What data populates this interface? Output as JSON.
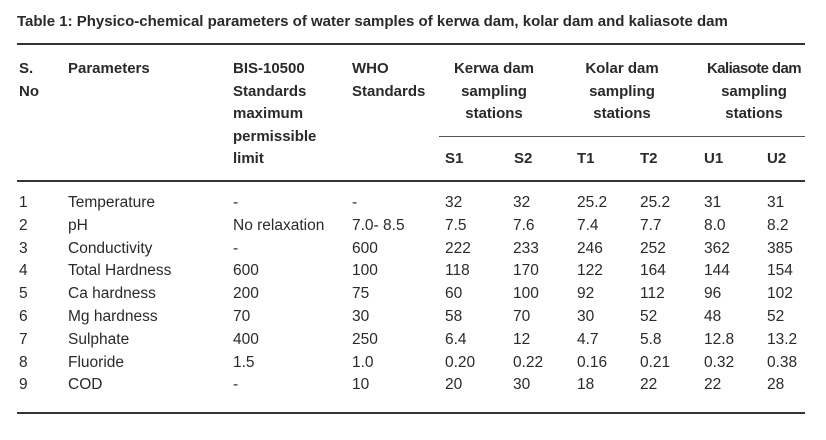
{
  "caption": "Table 1: Physico-chemical parameters of water samples of kerwa dam, kolar dam and kaliasote dam",
  "headers": {
    "sno": [
      "S.",
      "No"
    ],
    "parameters": "Parameters",
    "bis": [
      "BIS-10500",
      "Standards",
      "maximum",
      "permissible",
      "limit"
    ],
    "who": [
      "WHO",
      "Standards"
    ],
    "kerwa": [
      "Kerwa dam",
      "sampling",
      "stations"
    ],
    "kolar": [
      "Kolar dam",
      "sampling",
      "stations"
    ],
    "kaliasote": [
      "Kaliasote dam",
      "sampling",
      "stations"
    ],
    "stations": [
      "S1",
      "S2",
      "T1",
      "T2",
      "U1",
      "U2"
    ]
  },
  "rows": [
    [
      "1",
      "Temperature",
      "-",
      "-",
      "32",
      "32",
      "25.2",
      "25.2",
      "31",
      "31"
    ],
    [
      "2",
      "pH",
      "No relaxation",
      "7.0- 8.5",
      "7.5",
      "7.6",
      "7.4",
      "7.7",
      "8.0",
      "8.2"
    ],
    [
      "3",
      "Conductivity",
      "-",
      "600",
      "222",
      "233",
      "246",
      "252",
      "362",
      "385"
    ],
    [
      "4",
      "Total Hardness",
      "600",
      "100",
      "118",
      "170",
      "122",
      "164",
      "144",
      "154"
    ],
    [
      "5",
      "Ca hardness",
      "200",
      "75",
      "60",
      "100",
      "92",
      "112",
      "96",
      "102"
    ],
    [
      "6",
      "Mg hardness",
      "70",
      "30",
      "58",
      "70",
      "30",
      "52",
      "48",
      "52"
    ],
    [
      "7",
      "Sulphate",
      "400",
      "250",
      "6.4",
      "12",
      "4.7",
      "5.8",
      "12.8",
      "13.2"
    ],
    [
      "8",
      "Fluoride",
      "1.5",
      "1.0",
      "0.20",
      "0.22",
      "0.16",
      "0.21",
      "0.32",
      "0.38"
    ],
    [
      "9",
      "COD",
      "-",
      "10",
      "20",
      "30",
      "18",
      "22",
      "22",
      "28"
    ]
  ]
}
